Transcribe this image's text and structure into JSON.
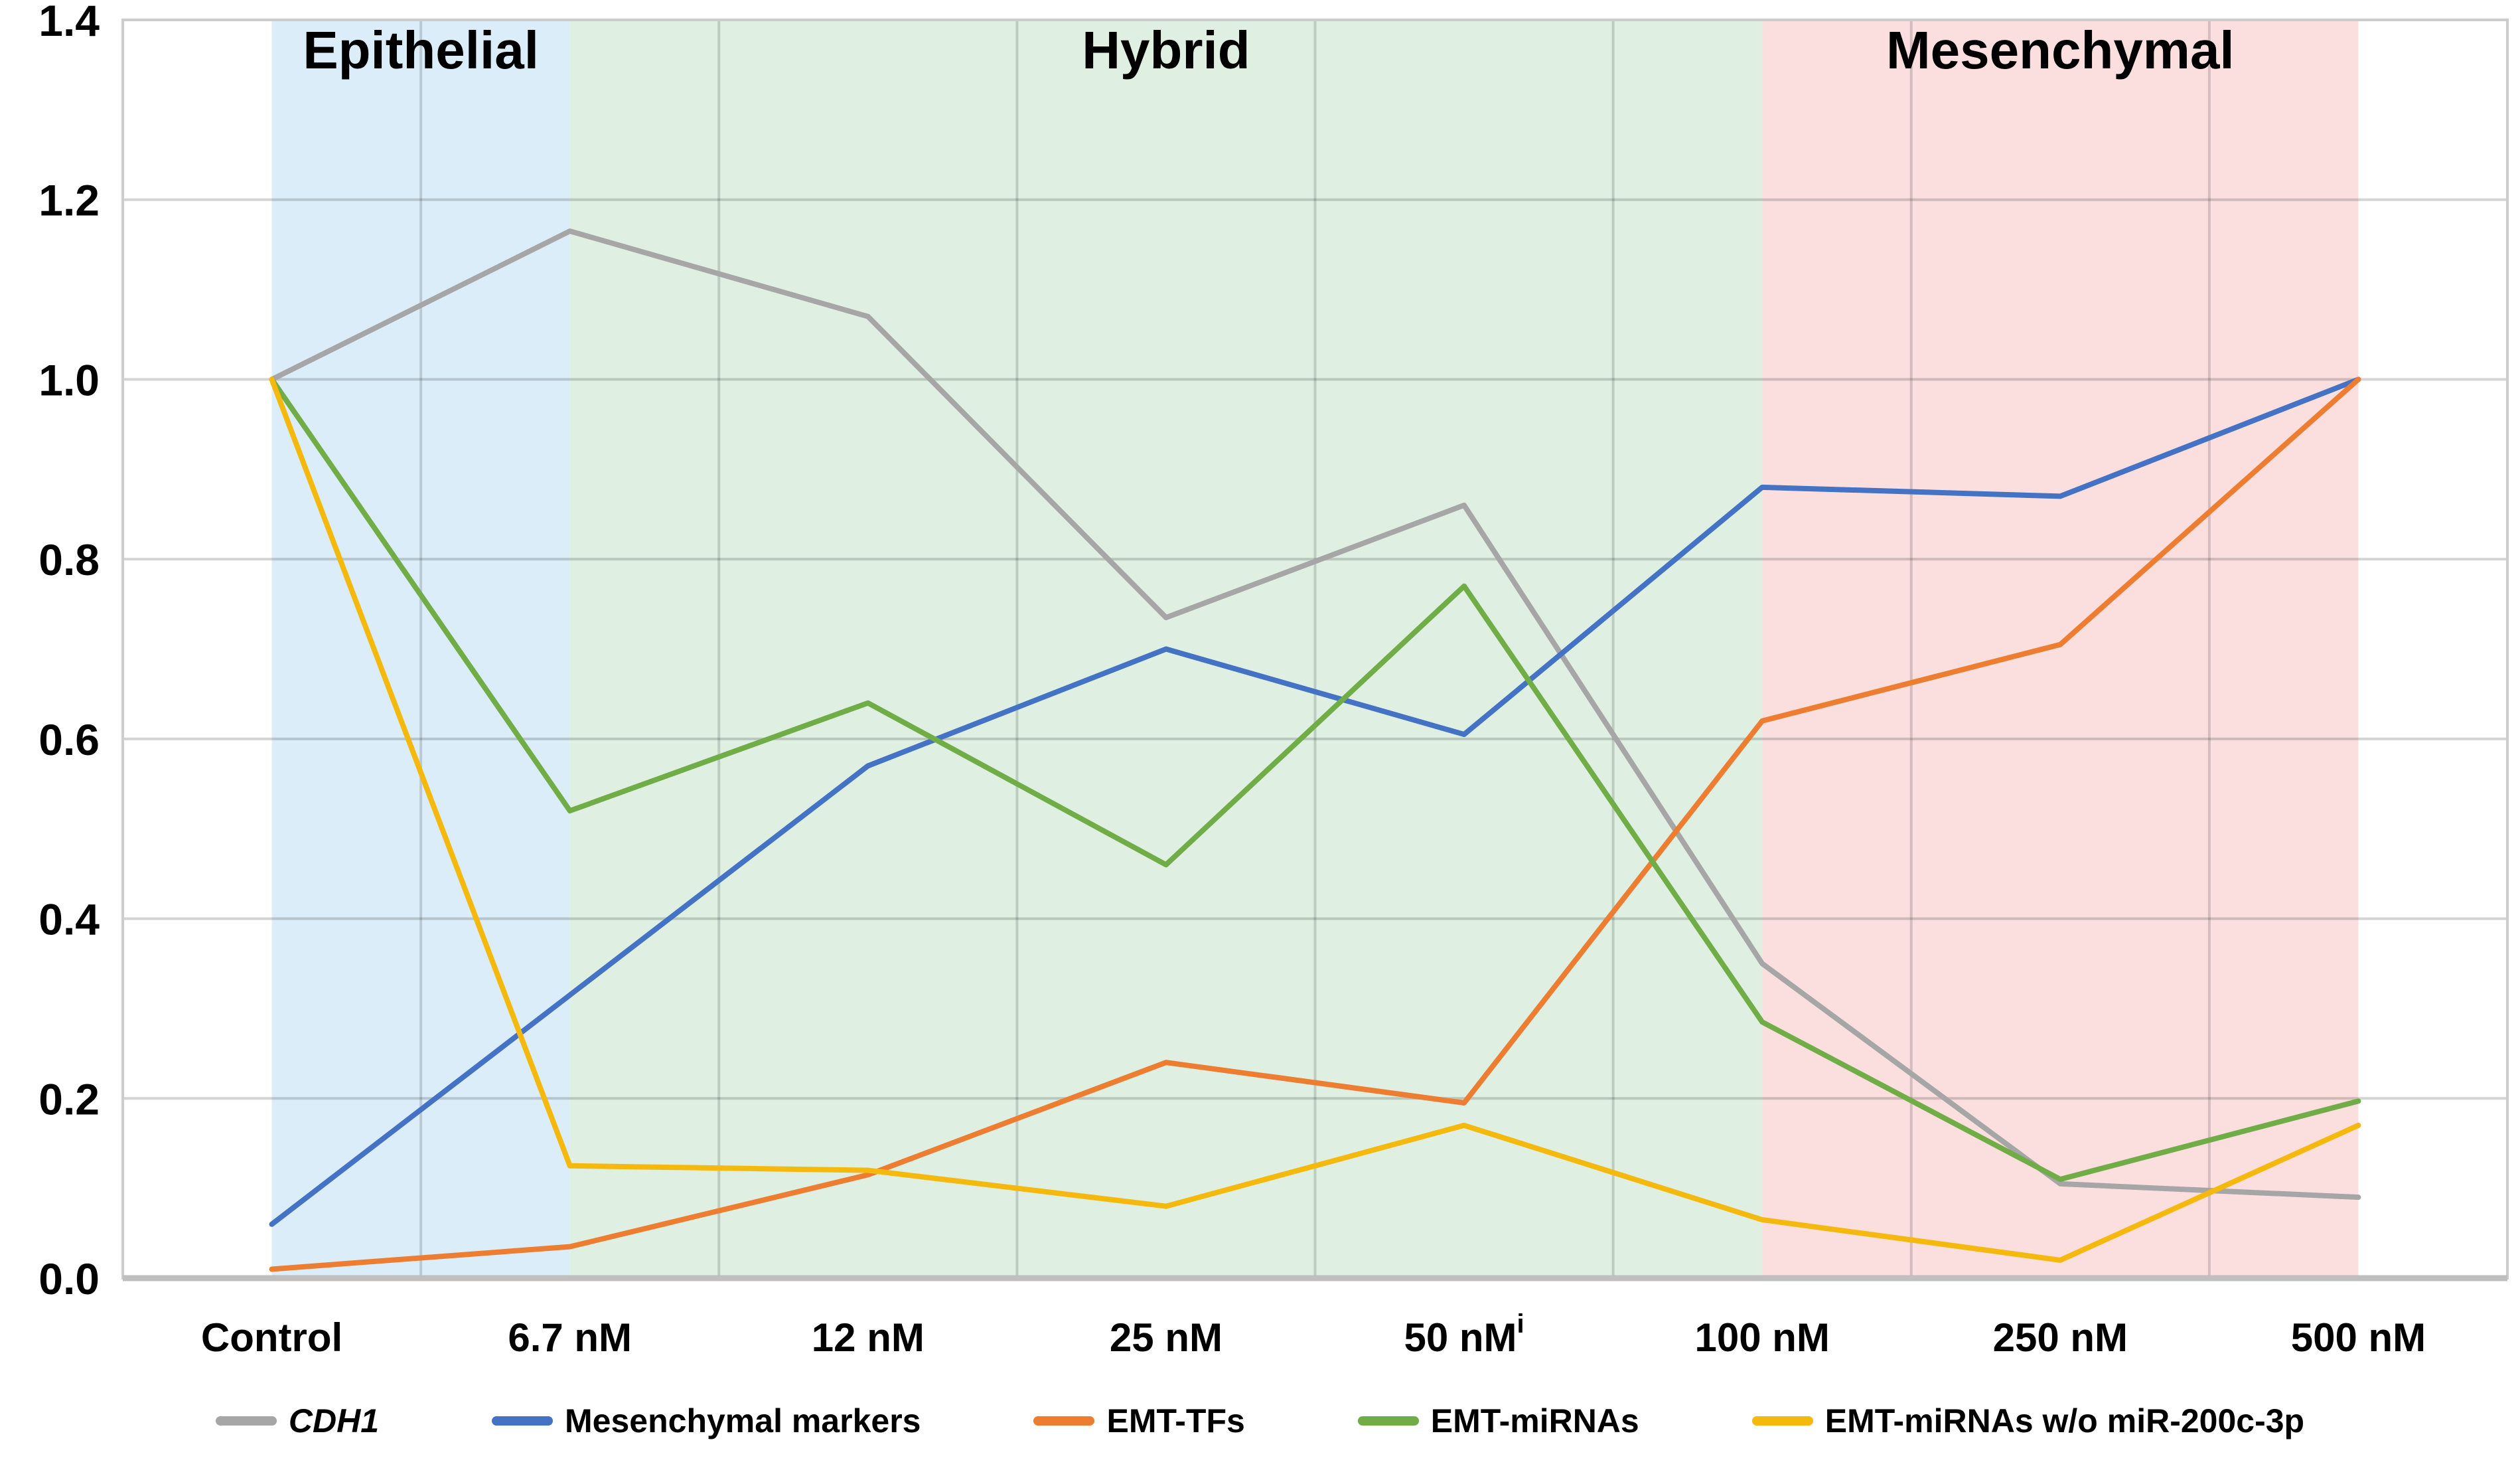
{
  "chart_data": {
    "type": "line",
    "title": "",
    "categories": [
      {
        "label": "Control",
        "sup": ""
      },
      {
        "label": "6.7 nM",
        "sup": ""
      },
      {
        "label": "12 nM",
        "sup": ""
      },
      {
        "label": "25 nM",
        "sup": ""
      },
      {
        "label": "50 nM",
        "sup": "i"
      },
      {
        "label": "100 nM",
        "sup": ""
      },
      {
        "label": "250 nM",
        "sup": ""
      },
      {
        "label": "500 nM",
        "sup": ""
      }
    ],
    "y_axis": {
      "min": 0,
      "max": 1.4,
      "step": 0.2,
      "tick_labels": [
        "0.0",
        "0.2",
        "0.4",
        "0.6",
        "0.8",
        "1.0",
        "1.2",
        "1.4"
      ]
    },
    "grid": true,
    "legend_position": "bottom",
    "regions": [
      {
        "label": "Epithelial",
        "from_category": 0,
        "to_category": 1,
        "fill": "#DBEDF8"
      },
      {
        "label": "Hybrid",
        "from_category": 1,
        "to_category": 5,
        "fill": "#DFF0E3"
      },
      {
        "label": "Mesenchymal",
        "from_category": 5,
        "to_category": 7,
        "fill": "#FBDFDF"
      }
    ],
    "series": [
      {
        "name": "CDH1",
        "italic": true,
        "color": "#A6A6A6",
        "values": [
          1.0,
          1.165,
          1.07,
          0.735,
          0.86,
          0.35,
          0.105,
          0.09
        ]
      },
      {
        "name": "Mesenchymal markers",
        "italic": false,
        "color": "#4472C4",
        "values": [
          0.06,
          0.315,
          0.57,
          0.7,
          0.605,
          0.88,
          0.87,
          1.0
        ]
      },
      {
        "name": "EMT-TFs",
        "italic": false,
        "color": "#ED7D31",
        "values": [
          0.01,
          0.035,
          0.115,
          0.24,
          0.195,
          0.62,
          0.705,
          1.0
        ]
      },
      {
        "name": "EMT-miRNAs",
        "italic": false,
        "color": "#70AD47",
        "values": [
          1.0,
          0.52,
          0.64,
          0.46,
          0.77,
          0.285,
          0.11,
          0.197
        ]
      },
      {
        "name": "EMT-miRNAs w/o miR-200c-3p",
        "italic": false,
        "color": "#F5B80C",
        "values": [
          1.0,
          0.125,
          0.12,
          0.08,
          0.17,
          0.065,
          0.02,
          0.17
        ]
      }
    ]
  }
}
